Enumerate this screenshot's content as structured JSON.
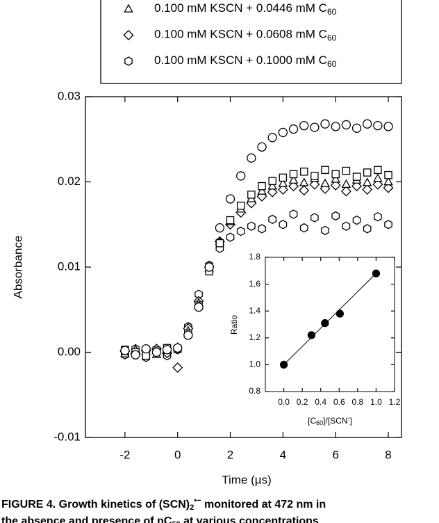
{
  "chart_data": [
    {
      "type": "scatter",
      "xlabel": "Time (µs)",
      "ylabel": "Absorbance",
      "xlim": [
        -3.5,
        8.5
      ],
      "ylim": [
        -0.01,
        0.03
      ],
      "xticks": [
        -2,
        0,
        2,
        4,
        6,
        8
      ],
      "yticks": [
        -0.01,
        {
          "value": 0,
          "label": "0.00"
        },
        0.01,
        0.02,
        0.03
      ],
      "x": [
        -2,
        -1.6,
        -1.2,
        -0.8,
        -0.4,
        0,
        0.4,
        0.8,
        1.2,
        1.6,
        2.0,
        2.4,
        2.8,
        3.2,
        3.6,
        4.0,
        4.4,
        4.8,
        5.2,
        5.6,
        6.0,
        6.4,
        6.8,
        7.2,
        7.6,
        8.0
      ],
      "series": [
        {
          "marker": "hexagon",
          "color": "#000000",
          "name": "0.100 mM KSCN + 0.1000 mM C",
          "name_subscript": "60",
          "values": [
            -0.0003,
            0.0004,
            -0.0006,
            0.0002,
            -0.0004,
            0.0003,
            0.003,
            0.0068,
            0.0102,
            0.0122,
            0.0135,
            0.0142,
            0.0148,
            0.0145,
            0.0156,
            0.015,
            0.0162,
            0.0146,
            0.0158,
            0.0143,
            0.016,
            0.0148,
            0.0155,
            0.0145,
            0.0159,
            0.015
          ]
        },
        {
          "marker": "diamond",
          "color": "#000000",
          "name": "0.100 mM KSCN + 0.0608 mM C",
          "name_subscript": "60",
          "values": [
            0.0001,
            -0.0002,
            0.0002,
            0.0004,
            -0.0001,
            -0.0018,
            0.0028,
            0.006,
            0.01,
            0.013,
            0.015,
            0.0164,
            0.0175,
            0.0183,
            0.0188,
            0.0191,
            0.0195,
            0.019,
            0.0197,
            0.0192,
            0.0196,
            0.0189,
            0.0195,
            0.0191,
            0.0197,
            0.0193
          ]
        },
        {
          "marker": "triangle",
          "color": "#000000",
          "name": "0.100 mM KSCN + 0.0446 mM C",
          "name_subscript": "60",
          "values": [
            -0.0002,
            0.0003,
            0.0001,
            -0.0003,
            0.0002,
            0.0006,
            0.0025,
            0.0058,
            0.0098,
            0.013,
            0.0153,
            0.0168,
            0.018,
            0.0189,
            0.0195,
            0.0198,
            0.0202,
            0.0199,
            0.0204,
            0.0198,
            0.0203,
            0.0197,
            0.0202,
            0.0199,
            0.0204,
            0.02
          ]
        },
        {
          "marker": "square",
          "color": "#000000",
          "values": [
            0.0003,
            0,
            -0.0004,
            0.0002,
            0.0005,
            0.0004,
            0.0022,
            0.0055,
            0.0095,
            0.0128,
            0.0155,
            0.0172,
            0.0185,
            0.0195,
            0.0201,
            0.0205,
            0.0209,
            0.0212,
            0.0207,
            0.0214,
            0.0209,
            0.0213,
            0.0206,
            0.0211,
            0.0214,
            0.0208
          ]
        },
        {
          "marker": "circle",
          "color": "#000000",
          "values": [
            0.0002,
            -0.0003,
            0.0004,
            0,
            0.0003,
            0.0005,
            0.002,
            0.0053,
            0.01,
            0.0146,
            0.018,
            0.0207,
            0.0228,
            0.0241,
            0.0252,
            0.0258,
            0.0262,
            0.0266,
            0.0264,
            0.0268,
            0.0265,
            0.0267,
            0.0263,
            0.0268,
            0.0266,
            0.0265
          ]
        }
      ]
    },
    {
      "type": "scatter",
      "xlabel_parts": [
        "[C",
        "60",
        "]/[SCN",
        "-",
        "]"
      ],
      "ylabel": "Ratio",
      "xlim": [
        -0.2,
        1.2
      ],
      "ylim": [
        0.8,
        1.8
      ],
      "xticks": [
        {
          "value": 0,
          "label": "0.0"
        },
        0.2,
        0.4,
        0.6,
        0.8,
        {
          "value": 1,
          "label": "1.0"
        },
        1.2
      ],
      "yticks": [
        0.8,
        {
          "value": 1,
          "label": "1.0"
        },
        1.2,
        1.4,
        1.6,
        1.8
      ],
      "x": [
        0,
        0.3,
        0.446,
        0.608,
        1.0
      ],
      "series": [
        {
          "marker": "dot",
          "color": "#000000",
          "values": [
            1.0,
            1.22,
            1.31,
            1.38,
            1.68
          ]
        }
      ],
      "fit": {
        "x": [
          0,
          1.0
        ],
        "values": [
          1.0,
          1.68
        ],
        "color": "#000000"
      }
    }
  ],
  "caption": [
    [
      "FIGURE 4. Growth kinetics of (SCN)",
      "2",
      "•−",
      " monitored at 472 nm in"
    ],
    [
      "the absence and presence of nC",
      "60",
      " at various concentrations"
    ]
  ]
}
